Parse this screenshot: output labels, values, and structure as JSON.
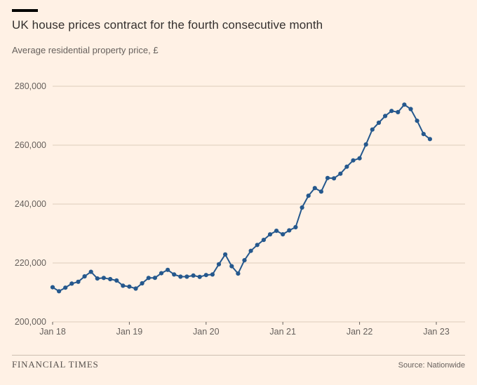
{
  "page": {
    "background_color": "#FFF1E5"
  },
  "header": {
    "title": "UK house prices contract for the fourth consecutive month",
    "subtitle": "Average residential property price, £"
  },
  "footer": {
    "brand": "FINANCIAL TIMES",
    "source": "Source: Nationwide"
  },
  "chart_data": {
    "type": "line",
    "title": "UK house prices contract for the fourth consecutive month",
    "subtitle": "Average residential property price, £",
    "unit": "£",
    "frequency": "monthly",
    "x_range": [
      "Jan 2018",
      "Dec 2022"
    ],
    "x_tick_labels": [
      "Jan 18",
      "Jan 19",
      "Jan 20",
      "Jan 21",
      "Jan 22",
      "Jan 23"
    ],
    "x_tick_month_indices": [
      0,
      12,
      24,
      36,
      48,
      60
    ],
    "ylim": [
      200000,
      280000
    ],
    "y_ticks": [
      200000,
      220000,
      240000,
      260000,
      280000
    ],
    "y_tick_labels": [
      "200,000",
      "220,000",
      "240,000",
      "260,000",
      "280,000"
    ],
    "grid": "horizontal",
    "legend": "none",
    "marker": "circle",
    "line_color": "#25588D",
    "grid_color": "#DCCDBB",
    "axis_text_color": "#66605C",
    "series": [
      {
        "name": "Average residential property price (£)",
        "values": [
          211756,
          210402,
          211625,
          213000,
          213618,
          215444,
          217010,
          214745,
          214922,
          214534,
          214044,
          212281,
          211966,
          211304,
          213102,
          214920,
          214946,
          216515,
          217663,
          216096,
          215352,
          215368,
          215734,
          215282,
          215897,
          216092,
          219583,
          222915,
          218902,
          216403,
          220936,
          224123,
          226129,
          227826,
          229721,
          230920,
          229748,
          231061,
          232134,
          238831,
          242832,
          245432,
          244229,
          248857,
          248742,
          250311,
          252687,
          254822,
          255556,
          260230,
          265312,
          267620,
          269914,
          271613,
          271209,
          273751,
          272259,
          268282,
          263788,
          262068
        ]
      }
    ]
  }
}
